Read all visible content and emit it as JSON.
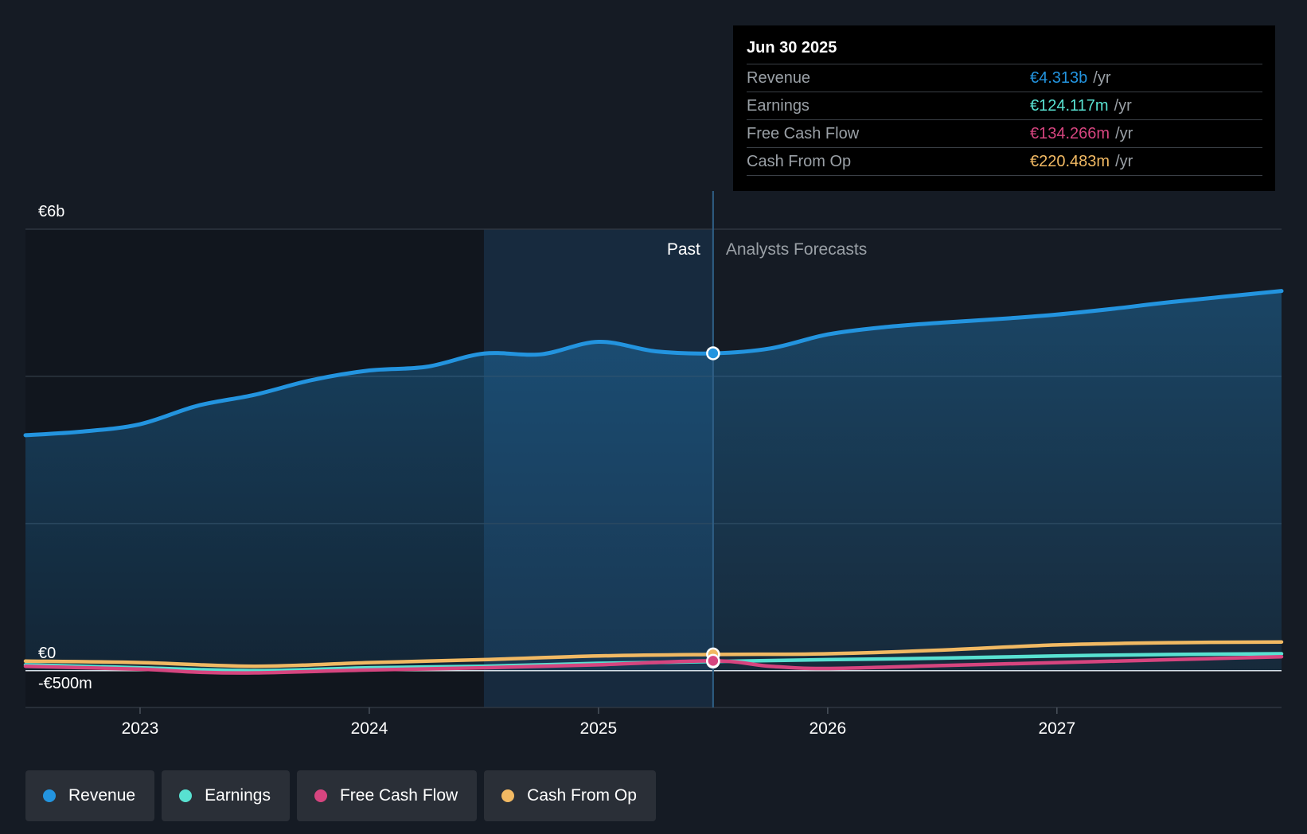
{
  "tooltip": {
    "date": "Jun 30 2025",
    "rows": [
      {
        "label": "Revenue",
        "value": "€4.313b",
        "unit": "/yr",
        "color": "#2394df"
      },
      {
        "label": "Earnings",
        "value": "€124.117m",
        "unit": "/yr",
        "color": "#58e1d1"
      },
      {
        "label": "Free Cash Flow",
        "value": "€134.266m",
        "unit": "/yr",
        "color": "#d6457f"
      },
      {
        "label": "Cash From Op",
        "value": "€220.483m",
        "unit": "/yr",
        "color": "#f1b963"
      }
    ]
  },
  "legend": [
    {
      "label": "Revenue",
      "color": "#2394df"
    },
    {
      "label": "Earnings",
      "color": "#58e1d1"
    },
    {
      "label": "Free Cash Flow",
      "color": "#d6457f"
    },
    {
      "label": "Cash From Op",
      "color": "#f1b963"
    }
  ],
  "chart_data": {
    "type": "line",
    "title": "",
    "y_tick_labels": [
      {
        "value": 6000,
        "label": "€6b"
      },
      {
        "value": 0,
        "label": "€0"
      },
      {
        "value": -500,
        "label": "-€500m"
      }
    ],
    "ylim": [
      -500,
      6000
    ],
    "x_tick_labels": [
      2023,
      2024,
      2025,
      2026,
      2027
    ],
    "xlim": [
      2022.5,
      2027.98
    ],
    "past_label": "Past",
    "forecast_label": "Analysts Forecasts",
    "divider_x": 2025.5,
    "highlight_start_x": 2024.5,
    "series": [
      {
        "name": "Revenue",
        "color": "#2394df",
        "fill": true,
        "x": [
          2022.5,
          2022.75,
          2023.0,
          2023.25,
          2023.5,
          2023.75,
          2024.0,
          2024.25,
          2024.5,
          2024.75,
          2025.0,
          2025.25,
          2025.5,
          2025.75,
          2026.0,
          2026.25,
          2026.5,
          2026.75,
          2027.0,
          2027.25,
          2027.5,
          2027.98
        ],
        "y": [
          3200,
          3250,
          3350,
          3600,
          3750,
          3950,
          4080,
          4130,
          4310,
          4300,
          4470,
          4340,
          4313,
          4380,
          4570,
          4670,
          4730,
          4780,
          4840,
          4920,
          5010,
          5160
        ]
      },
      {
        "name": "Cash From Op",
        "color": "#f1b963",
        "x": [
          2022.5,
          2023.0,
          2023.5,
          2024.0,
          2024.5,
          2025.0,
          2025.5,
          2026.0,
          2026.5,
          2027.0,
          2027.5,
          2027.98
        ],
        "y": [
          130,
          110,
          60,
          110,
          150,
          200,
          220,
          230,
          280,
          350,
          380,
          390
        ]
      },
      {
        "name": "Earnings",
        "color": "#58e1d1",
        "x": [
          2022.5,
          2023.0,
          2023.5,
          2024.0,
          2024.5,
          2025.0,
          2025.5,
          2026.0,
          2026.5,
          2027.0,
          2027.5,
          2027.98
        ],
        "y": [
          80,
          40,
          0,
          40,
          60,
          100,
          124,
          150,
          170,
          200,
          220,
          230
        ]
      },
      {
        "name": "Free Cash Flow",
        "color": "#d6457f",
        "x": [
          2022.5,
          2023.0,
          2023.25,
          2023.5,
          2024.0,
          2024.5,
          2025.0,
          2025.5,
          2025.75,
          2026.0,
          2026.5,
          2027.0,
          2027.5,
          2027.98
        ],
        "y": [
          60,
          20,
          -20,
          -30,
          10,
          40,
          80,
          134,
          60,
          30,
          70,
          110,
          150,
          190
        ]
      }
    ]
  }
}
